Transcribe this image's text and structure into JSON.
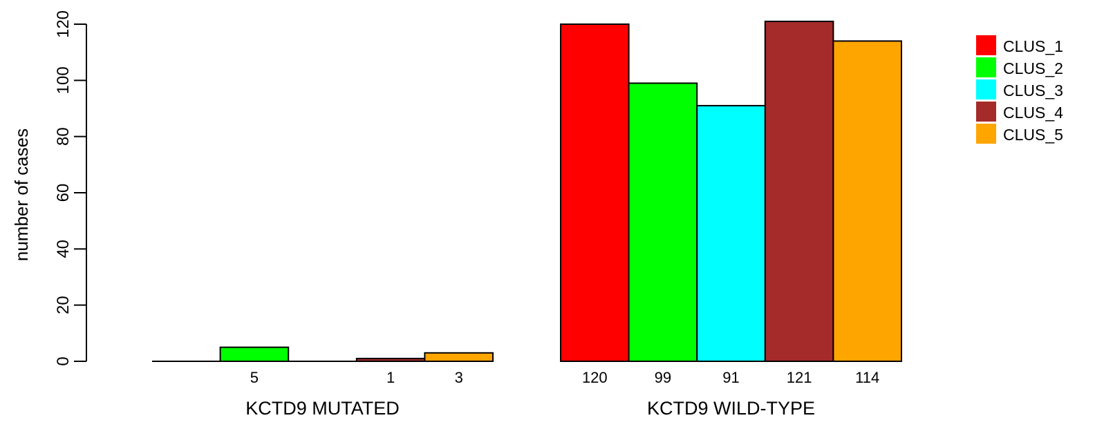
{
  "chart_data": {
    "type": "bar",
    "title": "",
    "xlabel": "",
    "ylabel": "number of cases",
    "ylim": [
      0,
      120
    ],
    "yticks": [
      0,
      20,
      40,
      60,
      80,
      100,
      120
    ],
    "grid": false,
    "legend_position": "top-right",
    "groups": [
      {
        "label": "KCTD9 MUTATED",
        "values": [
          0,
          5,
          0,
          1,
          3
        ],
        "value_labels": [
          "",
          "5",
          "",
          "1",
          "3"
        ]
      },
      {
        "label": "KCTD9 WILD-TYPE",
        "values": [
          120,
          99,
          91,
          121,
          114
        ],
        "value_labels": [
          "120",
          "99",
          "91",
          "121",
          "114"
        ]
      }
    ],
    "series": [
      {
        "name": "CLUS_1",
        "color": "#ff0000"
      },
      {
        "name": "CLUS_2",
        "color": "#00ff00"
      },
      {
        "name": "CLUS_3",
        "color": "#00ffff"
      },
      {
        "name": "CLUS_4",
        "color": "#a52a2a"
      },
      {
        "name": "CLUS_5",
        "color": "#ffa500"
      }
    ]
  }
}
